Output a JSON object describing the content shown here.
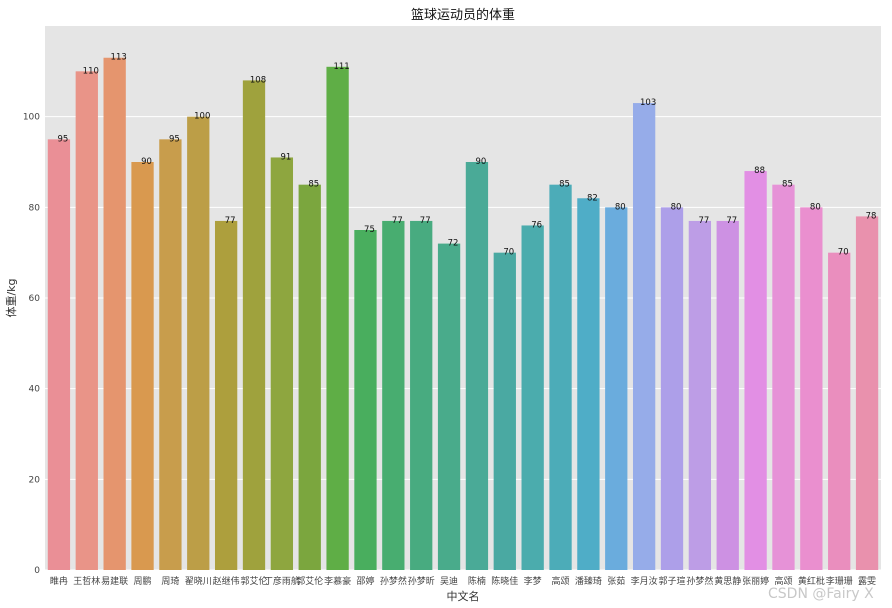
{
  "chart_data": {
    "type": "bar",
    "title": "篮球运动员的体重",
    "xlabel": "中文名",
    "ylabel": "体重/kg",
    "ylim": [
      0,
      120
    ],
    "yticks": [
      0,
      20,
      40,
      60,
      80,
      100
    ],
    "grid": true,
    "categories": [
      "睢冉",
      "王哲林",
      "易建联",
      "周鹏",
      "周琦",
      "翟晓川",
      "赵继伟",
      "郭艾伦",
      "丁彦雨航",
      "郭艾伦",
      "李慕豪",
      "邵婷",
      "孙梦然",
      "孙梦昕",
      "吴迪",
      "陈楠",
      "陈晓佳",
      "李梦",
      "高颂",
      "潘臻琦",
      "张茹",
      "李月汝",
      "郭子瑄",
      "孙梦然",
      "黄思静",
      "张丽婷",
      "高颂",
      "黄红枇",
      "李珊珊",
      "露雯"
    ],
    "values": [
      95,
      110,
      113,
      90,
      95,
      100,
      77,
      108,
      91,
      85,
      111,
      75,
      77,
      77,
      72,
      90,
      70,
      76,
      85,
      82,
      80,
      103,
      80,
      77,
      77,
      88,
      85,
      80,
      70,
      78
    ],
    "colors": [
      "#ea8f96",
      "#e99488",
      "#e5956e",
      "#d9994f",
      "#c89d4c",
      "#bc9e47",
      "#ad9f3d",
      "#9fa23d",
      "#8ea63f",
      "#7ba63e",
      "#5fae46",
      "#49ae5e",
      "#48ad70",
      "#48ab80",
      "#49ab8b",
      "#4aaa97",
      "#4aa9a2",
      "#4bacad",
      "#4cacb8",
      "#4fadc7",
      "#6aacdd",
      "#96ace9",
      "#ad9fe9",
      "#bd9de6",
      "#cd91e3",
      "#e28fe4",
      "#e692d7",
      "#ea8fcf",
      "#ea8ebe",
      "#e991ad"
    ],
    "background": "#e5e5e5",
    "grid_color": "#ffffff",
    "watermark": "CSDN @Fairy  X"
  }
}
